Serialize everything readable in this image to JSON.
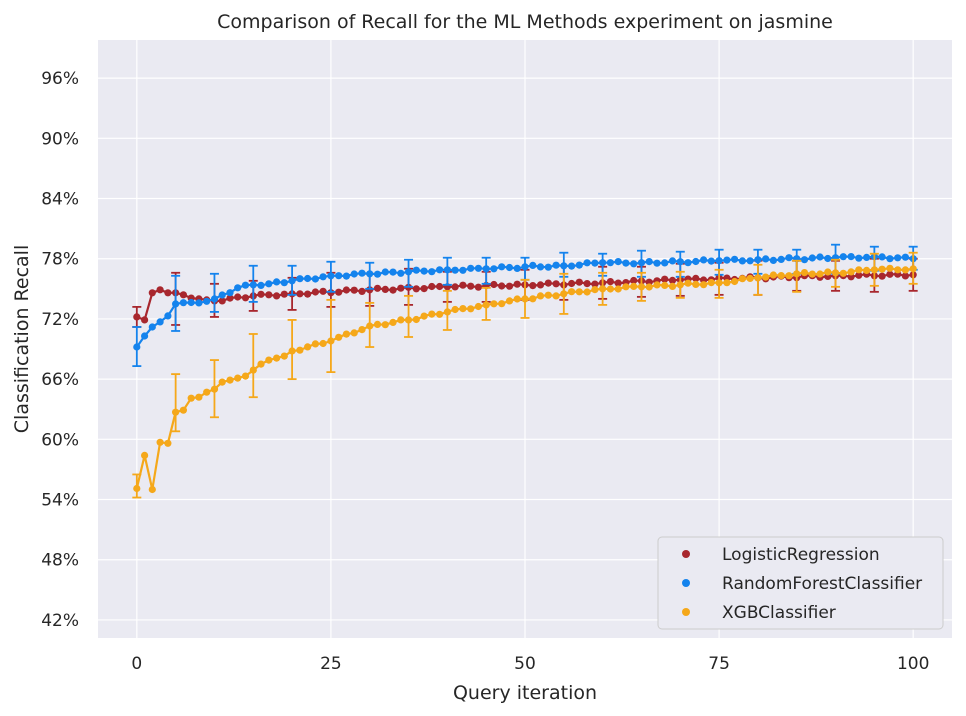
{
  "chart_data": {
    "type": "line",
    "title": "Comparison of Recall for the ML Methods experiment on jasmine",
    "xlabel": "Query iteration",
    "ylabel": "Classification Recall",
    "xlim": [
      -5,
      105
    ],
    "ylim": [
      40.2,
      99.8
    ],
    "x_ticks": [
      0,
      25,
      50,
      75,
      100
    ],
    "x_tick_labels": [
      "0",
      "25",
      "50",
      "75",
      "100"
    ],
    "y_ticks": [
      42,
      48,
      54,
      60,
      66,
      72,
      78,
      84,
      90,
      96
    ],
    "y_tick_labels": [
      "42%",
      "48%",
      "54%",
      "60%",
      "66%",
      "72%",
      "78%",
      "84%",
      "90%",
      "96%"
    ],
    "grid": true,
    "legend_position": "lower-right",
    "error_bar_every": 5,
    "colors": {
      "background": "#eaeaf2",
      "grid": "#ffffff",
      "LogisticRegression": "#a8272e",
      "RandomForestClassifier": "#1483ed",
      "XGBClassifier": "#f5a81a"
    },
    "series": [
      {
        "name": "LogisticRegression",
        "color": "#a8272e",
        "anchors": [
          [
            0,
            72.2
          ],
          [
            1,
            71.9
          ],
          [
            2,
            74.6
          ],
          [
            3,
            74.9
          ],
          [
            4,
            74.6
          ],
          [
            5,
            74.6
          ],
          [
            8,
            74.0
          ],
          [
            9,
            73.9
          ],
          [
            10,
            73.8
          ],
          [
            15,
            74.3
          ],
          [
            20,
            74.5
          ],
          [
            30,
            74.9
          ],
          [
            40,
            75.2
          ],
          [
            50,
            75.4
          ],
          [
            60,
            75.6
          ],
          [
            70,
            75.9
          ],
          [
            80,
            76.1
          ],
          [
            90,
            76.3
          ],
          [
            100,
            76.4
          ]
        ],
        "error_bars": [
          [
            0,
            71.2,
            73.2
          ],
          [
            5,
            71.4,
            76.6
          ],
          [
            10,
            72.2,
            75.5
          ],
          [
            15,
            72.8,
            75.8
          ],
          [
            20,
            72.9,
            76.1
          ],
          [
            25,
            73.2,
            76.6
          ],
          [
            30,
            73.3,
            76.5
          ],
          [
            35,
            73.4,
            77.0
          ],
          [
            40,
            73.7,
            76.7
          ],
          [
            45,
            73.7,
            76.7
          ],
          [
            50,
            73.9,
            76.9
          ],
          [
            55,
            73.9,
            77.3
          ],
          [
            60,
            74.0,
            77.2
          ],
          [
            65,
            74.2,
            77.2
          ],
          [
            70,
            74.3,
            77.5
          ],
          [
            75,
            74.4,
            77.6
          ],
          [
            80,
            74.4,
            77.8
          ],
          [
            85,
            74.8,
            77.8
          ],
          [
            90,
            74.8,
            77.8
          ],
          [
            95,
            74.7,
            78.0
          ],
          [
            100,
            74.8,
            78.0
          ]
        ]
      },
      {
        "name": "RandomForestClassifier",
        "color": "#1483ed",
        "anchors": [
          [
            0,
            69.2
          ],
          [
            1,
            70.3
          ],
          [
            2,
            71.2
          ],
          [
            3,
            71.7
          ],
          [
            4,
            72.3
          ],
          [
            5,
            73.5
          ],
          [
            8,
            73.6
          ],
          [
            10,
            74.0
          ],
          [
            13,
            75.1
          ],
          [
            15,
            75.4
          ],
          [
            17,
            75.5
          ],
          [
            20,
            75.8
          ],
          [
            25,
            76.3
          ],
          [
            30,
            76.5
          ],
          [
            35,
            76.7
          ],
          [
            40,
            76.9
          ],
          [
            45,
            77.0
          ],
          [
            50,
            77.2
          ],
          [
            55,
            77.3
          ],
          [
            60,
            77.6
          ],
          [
            65,
            77.6
          ],
          [
            70,
            77.7
          ],
          [
            75,
            77.8
          ],
          [
            80,
            77.9
          ],
          [
            85,
            78.0
          ],
          [
            90,
            78.1
          ],
          [
            95,
            78.2
          ],
          [
            100,
            78.0
          ]
        ],
        "error_bars": [
          [
            0,
            67.3,
            71.2
          ],
          [
            5,
            70.8,
            76.3
          ],
          [
            10,
            72.7,
            76.5
          ],
          [
            15,
            73.7,
            77.3
          ],
          [
            20,
            74.4,
            77.3
          ],
          [
            25,
            74.7,
            77.7
          ],
          [
            30,
            75.0,
            77.6
          ],
          [
            35,
            75.2,
            77.9
          ],
          [
            40,
            75.4,
            78.1
          ],
          [
            45,
            75.5,
            78.1
          ],
          [
            50,
            75.9,
            78.1
          ],
          [
            55,
            76.2,
            78.6
          ],
          [
            60,
            76.3,
            78.5
          ],
          [
            65,
            76.2,
            78.8
          ],
          [
            70,
            76.2,
            78.7
          ],
          [
            75,
            76.4,
            78.9
          ],
          [
            80,
            76.5,
            78.9
          ],
          [
            85,
            76.5,
            78.9
          ],
          [
            90,
            76.5,
            79.4
          ],
          [
            95,
            76.8,
            79.2
          ],
          [
            100,
            76.9,
            79.2
          ]
        ]
      },
      {
        "name": "XGBClassifier",
        "color": "#f5a81a",
        "anchors": [
          [
            0,
            55.1
          ],
          [
            1,
            58.4
          ],
          [
            2,
            55.0
          ],
          [
            3,
            59.7
          ],
          [
            4,
            59.6
          ],
          [
            5,
            62.7
          ],
          [
            6,
            62.9
          ],
          [
            7,
            64.1
          ],
          [
            8,
            64.2
          ],
          [
            9,
            64.7
          ],
          [
            10,
            65.0
          ],
          [
            11,
            65.7
          ],
          [
            12,
            65.9
          ],
          [
            13,
            66.1
          ],
          [
            14,
            66.3
          ],
          [
            15,
            66.9
          ],
          [
            16,
            67.5
          ],
          [
            17,
            67.9
          ],
          [
            18,
            68.1
          ],
          [
            19,
            68.3
          ],
          [
            20,
            68.8
          ],
          [
            25,
            69.8
          ],
          [
            30,
            71.3
          ],
          [
            35,
            71.9
          ],
          [
            40,
            72.7
          ],
          [
            45,
            73.4
          ],
          [
            50,
            74.0
          ],
          [
            55,
            74.5
          ],
          [
            60,
            75.0
          ],
          [
            65,
            75.2
          ],
          [
            70,
            75.4
          ],
          [
            75,
            75.6
          ],
          [
            80,
            76.1
          ],
          [
            85,
            76.5
          ],
          [
            90,
            76.6
          ],
          [
            95,
            76.9
          ],
          [
            100,
            77.0
          ]
        ],
        "error_bars": [
          [
            0,
            54.2,
            56.5
          ],
          [
            5,
            60.8,
            66.5
          ],
          [
            10,
            62.2,
            67.9
          ],
          [
            15,
            64.2,
            70.5
          ],
          [
            20,
            66.0,
            71.9
          ],
          [
            25,
            66.7,
            73.9
          ],
          [
            30,
            69.2,
            73.6
          ],
          [
            35,
            70.2,
            74.3
          ],
          [
            40,
            70.9,
            74.8
          ],
          [
            45,
            71.9,
            75.1
          ],
          [
            50,
            72.1,
            75.9
          ],
          [
            55,
            72.5,
            76.5
          ],
          [
            60,
            73.4,
            76.6
          ],
          [
            65,
            73.8,
            76.6
          ],
          [
            70,
            74.1,
            76.7
          ],
          [
            75,
            74.1,
            76.9
          ],
          [
            80,
            74.4,
            77.4
          ],
          [
            85,
            74.7,
            77.8
          ],
          [
            90,
            75.2,
            77.9
          ],
          [
            95,
            75.3,
            78.5
          ],
          [
            100,
            75.5,
            78.6
          ]
        ]
      }
    ]
  }
}
